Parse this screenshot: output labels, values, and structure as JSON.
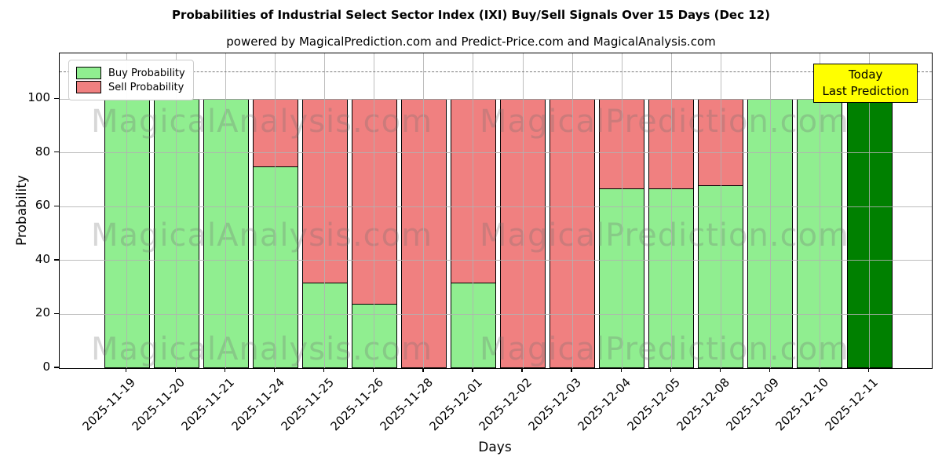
{
  "title": "Probabilities of Industrial Select Sector Index (IXI) Buy/Sell Signals Over 15 Days (Dec 12)",
  "subtitle": "powered by MagicalPrediction.com and Predict-Price.com and MagicalAnalysis.com",
  "legend": {
    "items": [
      {
        "label": "Buy Probability",
        "color": "#90EE90"
      },
      {
        "label": "Sell Probability",
        "color": "#F08080"
      }
    ]
  },
  "annotation": {
    "line1": "Today",
    "line2": "Last Prediction",
    "bg_color": "#FFFF00"
  },
  "watermarks": {
    "left": "MagicalAnalysis.com",
    "right": "MagicalPrediction.com"
  },
  "axes": {
    "ylabel": "Probability",
    "xlabel": "Days"
  },
  "chart_data": {
    "type": "bar",
    "stacked": true,
    "title": "Probabilities of Industrial Select Sector Index (IXI) Buy/Sell Signals Over 15 Days (Dec 12)",
    "xlabel": "Days",
    "ylabel": "Probability",
    "categories": [
      "2025-11-19",
      "2025-11-20",
      "2025-11-21",
      "2025-11-24",
      "2025-11-25",
      "2025-11-26",
      "2025-11-28",
      "2025-12-01",
      "2025-12-02",
      "2025-12-03",
      "2025-12-04",
      "2025-12-05",
      "2025-12-08",
      "2025-12-09",
      "2025-12-10",
      "2025-12-11"
    ],
    "series": [
      {
        "name": "Buy Probability",
        "color": "#90EE90",
        "values": [
          100,
          100,
          100,
          75,
          32,
          24,
          0,
          32,
          0,
          0,
          67,
          67,
          68,
          100,
          100,
          100
        ]
      },
      {
        "name": "Sell Probability",
        "color": "#F08080",
        "values": [
          0,
          0,
          0,
          25,
          68,
          76,
          100,
          68,
          100,
          100,
          33,
          33,
          32,
          0,
          0,
          0
        ]
      }
    ],
    "highlight_last_bar": {
      "color": "#008000",
      "note": "Today / Last Prediction"
    },
    "yticks": [
      0,
      20,
      40,
      60,
      80,
      100
    ],
    "ylim": [
      0,
      117
    ],
    "dashed_hline_y": 110,
    "grid": true,
    "legend_position": "upper left",
    "bar_edge_color": "#000000"
  }
}
